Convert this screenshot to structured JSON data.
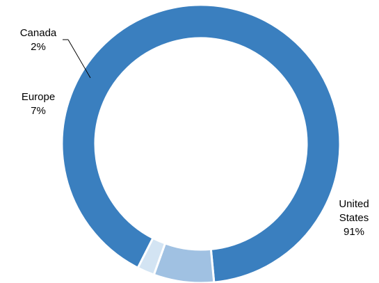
{
  "chart_data": {
    "type": "pie",
    "variant": "donut",
    "slices": [
      {
        "label_lines": [
          "United",
          "States"
        ],
        "value": 91,
        "value_label": "91%",
        "color": "#3a7fbf"
      },
      {
        "label_lines": [
          "Europe"
        ],
        "value": 7,
        "value_label": "7%",
        "color": "#a0c1e2"
      },
      {
        "label_lines": [
          "Canada"
        ],
        "value": 2,
        "value_label": "2%",
        "color": "#d3e4f3"
      }
    ],
    "separator_color": "#ffffff",
    "leader_line_color": "#000000"
  }
}
